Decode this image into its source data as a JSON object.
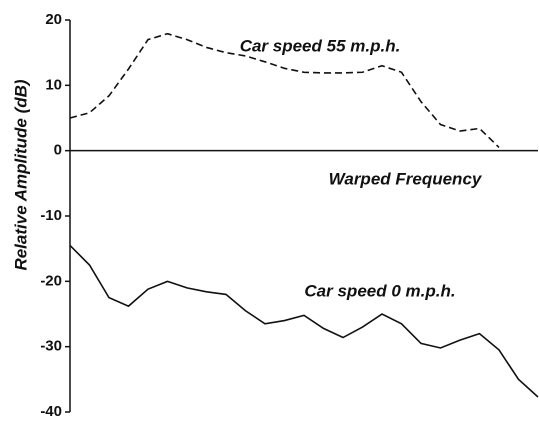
{
  "chart_data": {
    "type": "line",
    "y_label": "Relative Amplitude (dB)",
    "x_label": "Warped Frequency",
    "categories": [
      null,
      null,
      null,
      null,
      null,
      null,
      null,
      null,
      null,
      null,
      null,
      null,
      null,
      null,
      null,
      null,
      null,
      null,
      null,
      null,
      null,
      null,
      null,
      null,
      null
    ],
    "series": [
      {
        "name": "Car speed 55 m.p.h.",
        "color": "#111111",
        "linestyle": "dashed",
        "values": [
          5,
          5.8,
          8.4,
          12.5,
          17,
          17.9,
          17,
          15.8,
          15,
          14.5,
          13.6,
          12.6,
          12,
          11.9,
          11.9,
          12,
          13,
          12,
          7.5,
          4,
          3,
          3.4,
          0.5,
          null,
          null
        ]
      },
      {
        "name": "Car speed 0 m.p.h.",
        "color": "#111111",
        "linestyle": "solid",
        "values": [
          -14.5,
          -17.5,
          -22.5,
          -23.8,
          -21.2,
          -20,
          -21,
          -21.6,
          -22,
          -24.5,
          -26.5,
          -26,
          -25.2,
          -27.2,
          -28.6,
          -27,
          -25,
          -26.5,
          -29.5,
          -30.2,
          -29,
          -28,
          -30.5,
          -35,
          -37.7
        ]
      }
    ],
    "ylim": [
      -40,
      20
    ],
    "yticks": [
      20,
      10,
      0,
      -10,
      -20,
      -30,
      -40
    ],
    "grid": false
  }
}
